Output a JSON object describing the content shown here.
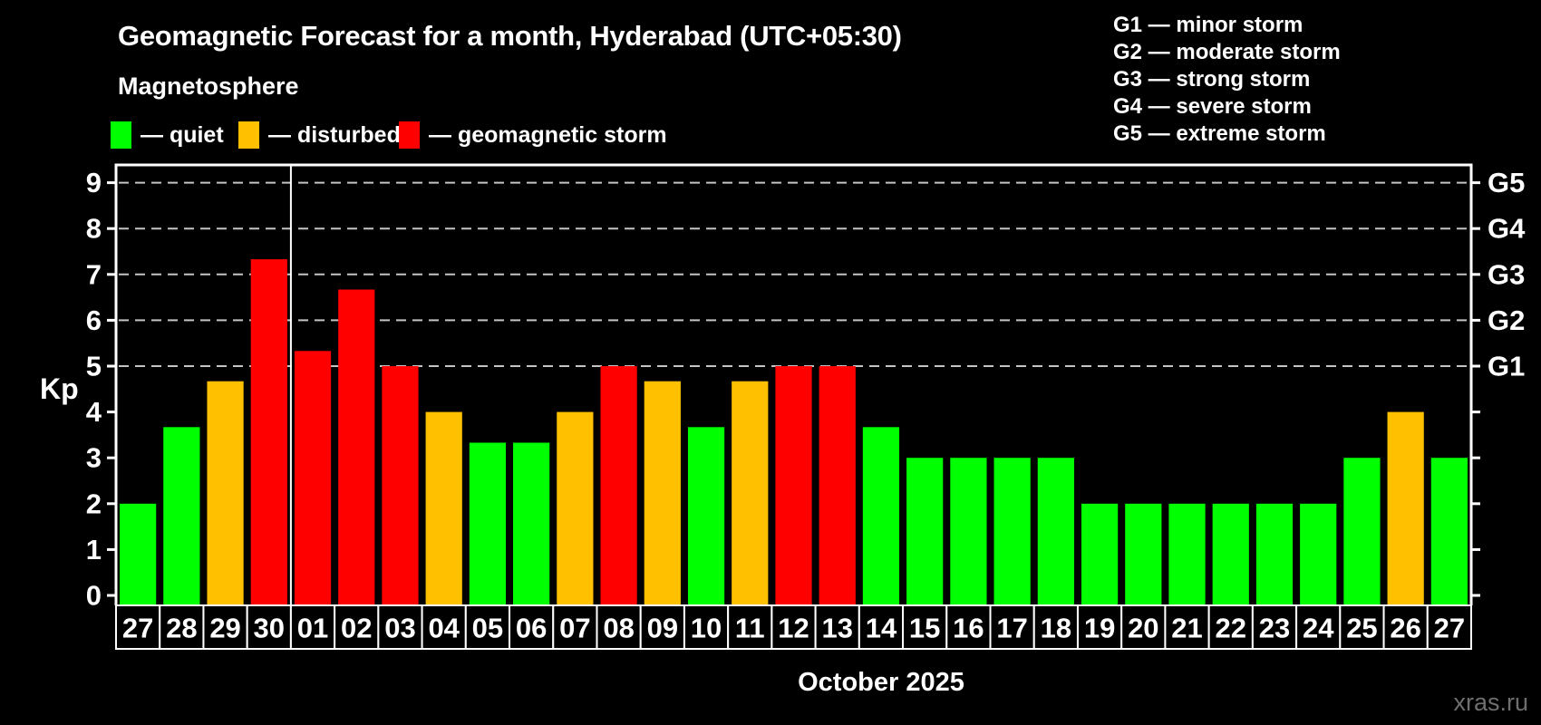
{
  "header": {
    "title": "Geomagnetic Forecast for a month, Hyderabad (UTC+05:30)",
    "subtitle": "Magnetosphere"
  },
  "legend": {
    "items": [
      {
        "name": "quiet",
        "label": "— quiet",
        "color": "#00ff00"
      },
      {
        "name": "disturbed",
        "label": "— disturbed",
        "color": "#ffc000"
      },
      {
        "name": "geomagnetic-storm",
        "label": "— geomagnetic storm",
        "color": "#ff0000"
      }
    ]
  },
  "storm_scale_legend": {
    "items": [
      "G1 — minor storm",
      "G2 — moderate storm",
      "G3 — strong storm",
      "G4 — severe storm",
      "G5 — extreme storm"
    ]
  },
  "watermark": "xras.ru",
  "chart_data": {
    "type": "bar",
    "title": "Geomagnetic Forecast for a month, Hyderabad (UTC+05:30)",
    "ylabel": "Kp",
    "xlabel": "October 2025",
    "ylim": [
      0,
      9
    ],
    "yticks": [
      0,
      1,
      2,
      3,
      4,
      5,
      6,
      7,
      8,
      9
    ],
    "grid": "dashed horizontal lines at Kp 5-9",
    "legend_position": "top-left",
    "right_axis_labels": [
      {
        "kp": 5,
        "label": "G1"
      },
      {
        "kp": 6,
        "label": "G2"
      },
      {
        "kp": 7,
        "label": "G3"
      },
      {
        "kp": 8,
        "label": "G4"
      },
      {
        "kp": 9,
        "label": "G5"
      }
    ],
    "month_separator_before_index": 4,
    "status_colors": {
      "quiet": "#00ff00",
      "disturbed": "#ffc000",
      "storm": "#ff0000"
    },
    "bars": [
      {
        "day": "27",
        "kp": 2.0,
        "status": "quiet"
      },
      {
        "day": "28",
        "kp": 3.67,
        "status": "quiet"
      },
      {
        "day": "29",
        "kp": 4.67,
        "status": "disturbed"
      },
      {
        "day": "30",
        "kp": 7.33,
        "status": "storm"
      },
      {
        "day": "01",
        "kp": 5.33,
        "status": "storm"
      },
      {
        "day": "02",
        "kp": 6.67,
        "status": "storm"
      },
      {
        "day": "03",
        "kp": 5.0,
        "status": "storm"
      },
      {
        "day": "04",
        "kp": 4.0,
        "status": "disturbed"
      },
      {
        "day": "05",
        "kp": 3.33,
        "status": "quiet"
      },
      {
        "day": "06",
        "kp": 3.33,
        "status": "quiet"
      },
      {
        "day": "07",
        "kp": 4.0,
        "status": "disturbed"
      },
      {
        "day": "08",
        "kp": 5.0,
        "status": "storm"
      },
      {
        "day": "09",
        "kp": 4.67,
        "status": "disturbed"
      },
      {
        "day": "10",
        "kp": 3.67,
        "status": "quiet"
      },
      {
        "day": "11",
        "kp": 4.67,
        "status": "disturbed"
      },
      {
        "day": "12",
        "kp": 5.0,
        "status": "storm"
      },
      {
        "day": "13",
        "kp": 5.0,
        "status": "storm"
      },
      {
        "day": "14",
        "kp": 3.67,
        "status": "quiet"
      },
      {
        "day": "15",
        "kp": 3.0,
        "status": "quiet"
      },
      {
        "day": "16",
        "kp": 3.0,
        "status": "quiet"
      },
      {
        "day": "17",
        "kp": 3.0,
        "status": "quiet"
      },
      {
        "day": "18",
        "kp": 3.0,
        "status": "quiet"
      },
      {
        "day": "19",
        "kp": 2.0,
        "status": "quiet"
      },
      {
        "day": "20",
        "kp": 2.0,
        "status": "quiet"
      },
      {
        "day": "21",
        "kp": 2.0,
        "status": "quiet"
      },
      {
        "day": "22",
        "kp": 2.0,
        "status": "quiet"
      },
      {
        "day": "23",
        "kp": 2.0,
        "status": "quiet"
      },
      {
        "day": "24",
        "kp": 2.0,
        "status": "quiet"
      },
      {
        "day": "25",
        "kp": 3.0,
        "status": "quiet"
      },
      {
        "day": "26",
        "kp": 4.0,
        "status": "disturbed"
      },
      {
        "day": "27",
        "kp": 3.0,
        "status": "quiet"
      }
    ]
  }
}
